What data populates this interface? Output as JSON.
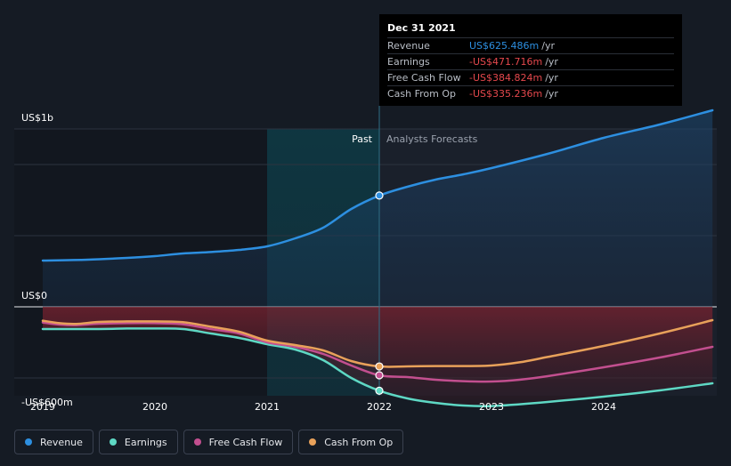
{
  "chart_data": {
    "type": "line",
    "x_unit": "year",
    "xlim": [
      2018.9,
      2024.97
    ],
    "ylim": [
      -700,
      1000
    ],
    "divider_x": 2022.0,
    "past_highlight_start": 2021.0,
    "y_axis_labels": [
      "US$1b",
      "US$0",
      "-US$600m"
    ],
    "y_axis_label_values": [
      1000,
      0,
      -600
    ],
    "x_ticks": [
      "2019",
      "2020",
      "2021",
      "2022",
      "2023",
      "2024"
    ],
    "x_tick_values": [
      2019,
      2020,
      2021,
      2022,
      2023,
      2024
    ],
    "region_labels": {
      "past": "Past",
      "forecast": "Analysts Forecasts"
    },
    "series": [
      {
        "name": "Revenue",
        "color": "#2d8fe0",
        "points": [
          [
            2019.0,
            260
          ],
          [
            2019.4,
            265
          ],
          [
            2019.75,
            275
          ],
          [
            2020.0,
            285
          ],
          [
            2020.25,
            300
          ],
          [
            2020.5,
            308
          ],
          [
            2020.75,
            320
          ],
          [
            2021.0,
            340
          ],
          [
            2021.25,
            385
          ],
          [
            2021.5,
            445
          ],
          [
            2021.75,
            550
          ],
          [
            2022.0,
            625.486
          ],
          [
            2022.25,
            675
          ],
          [
            2022.5,
            715
          ],
          [
            2022.75,
            745
          ],
          [
            2023.0,
            780
          ],
          [
            2023.5,
            860
          ],
          [
            2024.0,
            950
          ],
          [
            2024.5,
            1025
          ],
          [
            2024.97,
            1105
          ]
        ],
        "marker_at": [
          2022.0,
          625.486
        ]
      },
      {
        "name": "Earnings",
        "color": "#5ed8c4",
        "points": [
          [
            2019.0,
            -125
          ],
          [
            2019.5,
            -125
          ],
          [
            2019.75,
            -122
          ],
          [
            2020.0,
            -122
          ],
          [
            2020.25,
            -125
          ],
          [
            2020.5,
            -150
          ],
          [
            2020.75,
            -175
          ],
          [
            2021.0,
            -210
          ],
          [
            2021.25,
            -240
          ],
          [
            2021.5,
            -300
          ],
          [
            2021.75,
            -400
          ],
          [
            2022.0,
            -471.716
          ],
          [
            2022.25,
            -515
          ],
          [
            2022.5,
            -540
          ],
          [
            2022.75,
            -555
          ],
          [
            2023.0,
            -558
          ],
          [
            2023.25,
            -548
          ],
          [
            2023.5,
            -535
          ],
          [
            2024.0,
            -505
          ],
          [
            2024.5,
            -470
          ],
          [
            2024.97,
            -430
          ]
        ],
        "marker_at": [
          2022.0,
          -471.716
        ]
      },
      {
        "name": "Free Cash Flow",
        "color": "#c24f8f",
        "points": [
          [
            2019.0,
            -88
          ],
          [
            2019.15,
            -100
          ],
          [
            2019.3,
            -103
          ],
          [
            2019.5,
            -95
          ],
          [
            2019.75,
            -92
          ],
          [
            2020.0,
            -92
          ],
          [
            2020.25,
            -98
          ],
          [
            2020.5,
            -125
          ],
          [
            2020.75,
            -150
          ],
          [
            2021.0,
            -200
          ],
          [
            2021.25,
            -225
          ],
          [
            2021.5,
            -265
          ],
          [
            2021.75,
            -330
          ],
          [
            2022.0,
            -384.824
          ],
          [
            2022.25,
            -395
          ],
          [
            2022.5,
            -410
          ],
          [
            2022.75,
            -418
          ],
          [
            2023.0,
            -420
          ],
          [
            2023.25,
            -410
          ],
          [
            2023.5,
            -390
          ],
          [
            2024.0,
            -340
          ],
          [
            2024.5,
            -285
          ],
          [
            2024.97,
            -225
          ]
        ],
        "marker_at": [
          2022.0,
          -384.824
        ]
      },
      {
        "name": "Cash From Op",
        "color": "#e8a15a",
        "points": [
          [
            2019.0,
            -78
          ],
          [
            2019.15,
            -92
          ],
          [
            2019.3,
            -96
          ],
          [
            2019.5,
            -85
          ],
          [
            2019.75,
            -82
          ],
          [
            2020.0,
            -82
          ],
          [
            2020.25,
            -86
          ],
          [
            2020.5,
            -112
          ],
          [
            2020.75,
            -140
          ],
          [
            2021.0,
            -190
          ],
          [
            2021.25,
            -215
          ],
          [
            2021.5,
            -245
          ],
          [
            2021.75,
            -305
          ],
          [
            2022.0,
            -335.236
          ],
          [
            2022.25,
            -335
          ],
          [
            2022.5,
            -333
          ],
          [
            2022.75,
            -333
          ],
          [
            2023.0,
            -330
          ],
          [
            2023.25,
            -312
          ],
          [
            2023.5,
            -282
          ],
          [
            2024.0,
            -220
          ],
          [
            2024.5,
            -150
          ],
          [
            2024.97,
            -75
          ]
        ],
        "marker_at": [
          2022.0,
          -335.236
        ]
      }
    ]
  },
  "tooltip": {
    "date": "Dec 31 2021",
    "rows": [
      {
        "name": "Revenue",
        "value": "US$625.486m",
        "unit": "/yr",
        "color": "#2d8fe0"
      },
      {
        "name": "Earnings",
        "value": "-US$471.716m",
        "unit": "/yr",
        "color": "#e5484d"
      },
      {
        "name": "Free Cash Flow",
        "value": "-US$384.824m",
        "unit": "/yr",
        "color": "#e5484d"
      },
      {
        "name": "Cash From Op",
        "value": "-US$335.236m",
        "unit": "/yr",
        "color": "#e5484d"
      }
    ]
  },
  "legend": [
    {
      "label": "Revenue",
      "color": "#2d8fe0"
    },
    {
      "label": "Earnings",
      "color": "#5ed8c4"
    },
    {
      "label": "Free Cash Flow",
      "color": "#c24f8f"
    },
    {
      "label": "Cash From Op",
      "color": "#e8a15a"
    }
  ]
}
